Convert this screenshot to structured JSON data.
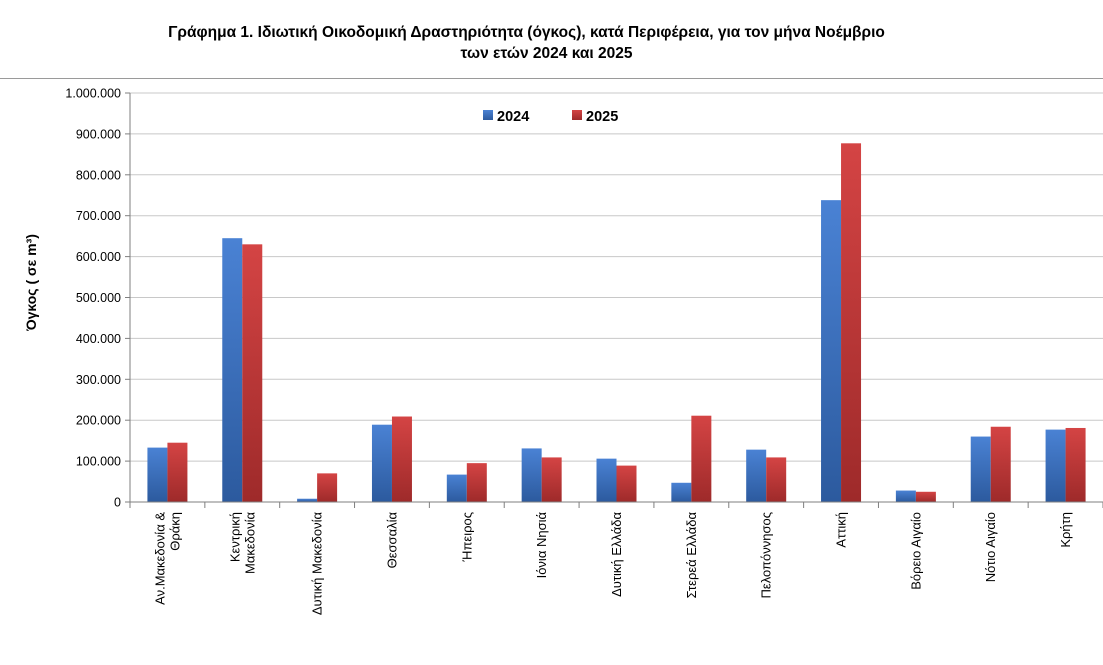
{
  "chart_data": {
    "type": "bar",
    "title_line1": "Γράφημα 1.  Ιδιωτική Οικοδομική Δραστηριότητα (όγκος), κατά Περιφέρεια, για τον μήνα Νοέμβριο",
    "title_line2": "των ετών 2024 και 2025",
    "ylabel": "Όγκος ( σε  m³)",
    "xlabel": "",
    "ylim": [
      0,
      1000000
    ],
    "yticks": [
      "0",
      "100.000",
      "200.000",
      "300.000",
      "400.000",
      "500.000",
      "600.000",
      "700.000",
      "800.000",
      "900.000",
      "1.000.000"
    ],
    "categories": [
      [
        "Αν.Μακεδονία &",
        "Θράκη"
      ],
      [
        "Κεντρική",
        "Μακεδονία"
      ],
      [
        "Δυτική Μακεδονία"
      ],
      [
        "Θεσσαλία"
      ],
      [
        "Ήπειρος"
      ],
      [
        "Ιόνια Νησιά"
      ],
      [
        "Δυτική Ελλάδα"
      ],
      [
        "Στερεά Ελλάδα"
      ],
      [
        "Πελοπόννησος"
      ],
      [
        "Αττική"
      ],
      [
        "Βόρειο Αιγαίο"
      ],
      [
        "Νότιο Αιγαίο"
      ],
      [
        "Κρήτη"
      ]
    ],
    "series": [
      {
        "name": "2024",
        "color": "#3a6fbf",
        "values": [
          133000,
          645000,
          8000,
          189000,
          67000,
          131000,
          106000,
          47000,
          128000,
          738000,
          28000,
          160000,
          177000
        ]
      },
      {
        "name": "2025",
        "color": "#c23434",
        "values": [
          145000,
          630000,
          70000,
          209000,
          95000,
          109000,
          89000,
          211000,
          109000,
          877000,
          25000,
          184000,
          181000
        ]
      }
    ],
    "legend_position": "top-center",
    "grid": true
  }
}
